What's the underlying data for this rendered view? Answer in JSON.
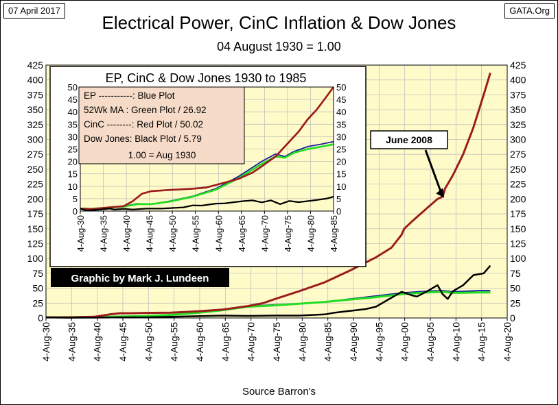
{
  "header": {
    "date_badge": "07 April 2017",
    "source_badge": "GATA.Org",
    "title": "Electrical Power, CinC Inflation & Dow Jones",
    "subtitle": "04 August 1930 = 1.00",
    "footer": "Source Barron's"
  },
  "colors": {
    "plot_bg": "#fffbc8",
    "grid": "#c0c0c0",
    "ep": "#1a1a9e",
    "ma": "#22dd22",
    "cinc": "#9b1c1c",
    "dow": "#000000",
    "inset_bg": "#ffffff",
    "legend_bg": "#f6dcc8",
    "badge_bg": "#000000",
    "badge_text": "#ffffff"
  },
  "credit": "Graphic by Mark J. Lundeen",
  "annotation": {
    "text": "June 2008"
  },
  "inset": {
    "title": "EP, CinC & Dow Jones 1930 to 1985",
    "legend_lines": [
      "EP -----------: Blue Plot",
      "52Wk MA  : Green Plot / 26.92",
      "CinC --------: Red Plot    / 50.02",
      "Dow Jones: Black Plot   /  5.79",
      "1.00 = Aug 1930"
    ]
  },
  "chart_data": [
    {
      "type": "line",
      "title": "Electrical Power, CinC Inflation & Dow Jones",
      "subtitle": "04 August 1930 = 1.00",
      "xlabel": "Source Barron's",
      "ylabel": "",
      "x_tick_labels": [
        "4-Aug-30",
        "4-Aug-35",
        "4-Aug-40",
        "4-Aug-45",
        "4-Aug-50",
        "4-Aug-55",
        "4-Aug-60",
        "4-Aug-65",
        "4-Aug-70",
        "4-Aug-75",
        "4-Aug-80",
        "4-Aug-85",
        "4-Aug-90",
        "4-Aug-95",
        "4-Aug-00",
        "4-Aug-05",
        "4-Aug-10",
        "4-Aug-15",
        "4-Aug-20"
      ],
      "xlim": [
        1930.6,
        2020.6
      ],
      "ylim": [
        0,
        425
      ],
      "y_ticks": [
        0,
        25,
        50,
        75,
        100,
        125,
        150,
        175,
        200,
        225,
        250,
        275,
        300,
        325,
        350,
        375,
        400,
        425
      ],
      "y_axis_both_sides": true,
      "grid": true,
      "series": [
        {
          "name": "CinC",
          "x": [
            1930.6,
            1935,
            1940,
            1943,
            1945,
            1947,
            1950,
            1955,
            1960,
            1965,
            1970,
            1973,
            1975,
            1980,
            1985,
            1990,
            1995,
            1998,
            2000,
            2000.5,
            2002,
            2005,
            2007,
            2008,
            2008.5,
            2010,
            2012,
            2014,
            2016,
            2017.3
          ],
          "values": [
            1,
            1,
            2,
            6,
            8,
            8,
            8.5,
            9,
            11,
            14,
            20,
            25,
            31,
            45,
            60,
            80,
            102,
            118,
            140,
            150,
            162,
            185,
            200,
            204,
            218,
            240,
            275,
            320,
            375,
            412
          ]
        },
        {
          "name": "EP",
          "x": [
            1930.6,
            1940,
            1950,
            1955,
            1960,
            1965,
            1970,
            1975,
            1980,
            1985,
            1990,
            1995,
            2000,
            2005,
            2008,
            2010,
            2015,
            2017.3
          ],
          "values": [
            1,
            1.8,
            3.5,
            5.5,
            9,
            14,
            20,
            22,
            24,
            27,
            32,
            37,
            42,
            45,
            46,
            44,
            46,
            46
          ]
        },
        {
          "name": "52Wk MA",
          "x": [
            1930.6,
            1940,
            1950,
            1955,
            1960,
            1965,
            1970,
            1975,
            1980,
            1985,
            1990,
            1995,
            2000,
            2005,
            2008,
            2010,
            2015,
            2017.3
          ],
          "values": [
            1,
            1.6,
            3.2,
            5.2,
            8.5,
            13,
            19,
            21,
            24,
            26.9,
            31,
            35,
            40,
            43,
            44,
            42,
            43,
            43
          ]
        },
        {
          "name": "Dow Jones",
          "x": [
            1930.6,
            1935,
            1940,
            1945,
            1950,
            1955,
            1960,
            1965,
            1970,
            1975,
            1980,
            1985,
            1987,
            1990,
            1993,
            1995,
            1998,
            2000,
            2002,
            2003,
            2005,
            2007,
            2008,
            2009,
            2010,
            2012,
            2014,
            2016,
            2017.3
          ],
          "values": [
            1,
            0.5,
            0.6,
            1,
            1,
            2,
            3,
            4,
            3.5,
            4,
            4,
            6,
            9,
            12,
            15,
            19,
            34,
            44,
            38,
            36,
            45,
            55,
            40,
            32,
            45,
            55,
            72,
            75,
            88
          ]
        }
      ]
    },
    {
      "type": "line",
      "title": "EP, CinC & Dow Jones 1930 to 1985",
      "x_tick_labels": [
        "4-Aug-30",
        "4-Aug-35",
        "4-Aug-40",
        "4-Aug-45",
        "4-Aug-50",
        "4-Aug-55",
        "4-Aug-60",
        "4-Aug-65",
        "4-Aug-70",
        "4-Aug-75",
        "4-Aug-80",
        "4-Aug-85"
      ],
      "xlim": [
        1930.6,
        1985.6
      ],
      "ylim": [
        0,
        50
      ],
      "y_ticks": [
        0,
        5,
        10,
        15,
        20,
        25,
        30,
        35,
        40,
        45,
        50
      ],
      "y_axis_both_sides": true,
      "grid": true,
      "series": [
        {
          "name": "CinC",
          "x": [
            1930.6,
            1933,
            1937,
            1940,
            1942,
            1944,
            1946,
            1950,
            1955,
            1958,
            1960,
            1963,
            1965,
            1968,
            1970,
            1973,
            1975,
            1978,
            1980,
            1982,
            1984,
            1985.6
          ],
          "values": [
            1,
            0.8,
            1.5,
            2,
            4,
            7,
            8,
            8.5,
            9,
            9.5,
            10.5,
            12,
            13,
            15.5,
            18,
            22,
            26,
            32,
            37,
            41,
            46,
            50
          ]
        },
        {
          "name": "EP",
          "x": [
            1930.6,
            1933,
            1937,
            1940,
            1943,
            1946,
            1950,
            1955,
            1960,
            1965,
            1970,
            1973,
            1975,
            1977,
            1980,
            1983,
            1985.6
          ],
          "values": [
            1,
            0.9,
            1.5,
            2,
            3,
            2.8,
            4,
            6,
            9,
            14,
            20,
            23,
            22,
            24,
            26,
            27,
            28
          ]
        },
        {
          "name": "52Wk MA",
          "x": [
            1930.6,
            1933,
            1937,
            1940,
            1943,
            1946,
            1950,
            1955,
            1960,
            1965,
            1970,
            1973,
            1975,
            1977,
            1980,
            1983,
            1985.6
          ],
          "values": [
            1,
            0.9,
            1.4,
            1.8,
            2.8,
            2.8,
            3.8,
            5.8,
            8.6,
            13.3,
            19,
            22,
            21.5,
            23.5,
            25,
            26,
            26.92
          ]
        },
        {
          "name": "Dow Jones",
          "x": [
            1930.6,
            1932,
            1935,
            1937,
            1938,
            1940,
            1942,
            1945,
            1948,
            1950,
            1953,
            1955,
            1957,
            1960,
            1962,
            1964,
            1966,
            1968,
            1970,
            1972,
            1974,
            1976,
            1978,
            1980,
            1982,
            1984,
            1985.6
          ],
          "values": [
            1,
            0.2,
            0.6,
            1,
            0.6,
            0.9,
            0.6,
            1,
            1,
            1.2,
            1.5,
            2.3,
            2.2,
            3,
            3.1,
            3.6,
            4,
            4.3,
            3.5,
            4.3,
            2.8,
            4.1,
            3.6,
            4,
            4.5,
            5,
            5.79
          ]
        }
      ]
    }
  ]
}
